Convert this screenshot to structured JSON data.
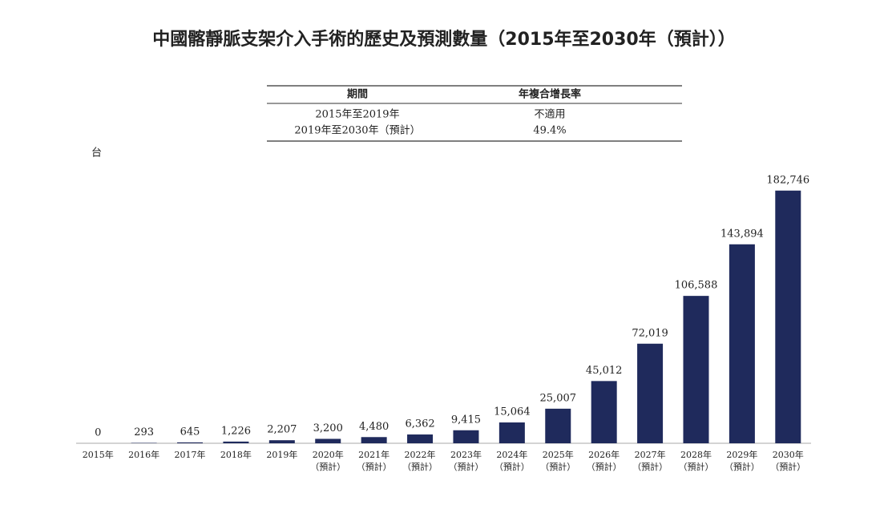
{
  "chart_data": {
    "type": "bar",
    "title": "中國髂靜脈支架介入手術的歷史及預測數量（2015年至2030年（預計））",
    "table": {
      "header": [
        "期間",
        "年複合增長率"
      ],
      "rows": [
        [
          "2015年至2019年",
          "不適用"
        ],
        [
          "2019年至2030年（預計）",
          "49.4%"
        ]
      ]
    },
    "y_unit": "台",
    "categories": [
      "2015年",
      "2016年",
      "2017年",
      "2018年",
      "2019年",
      "2020年",
      "2021年",
      "2022年",
      "2023年",
      "2024年",
      "2025年",
      "2026年",
      "2027年",
      "2028年",
      "2029年",
      "2030年"
    ],
    "category_sublabels": [
      null,
      null,
      null,
      null,
      null,
      "（預計）",
      "（預計）",
      "（預計）",
      "（預計）",
      "（預計）",
      "（預計）",
      "（預計）",
      "（預計）",
      "（預計）",
      "（預計）",
      "（預計）"
    ],
    "values": [
      0,
      293,
      645,
      1226,
      2207,
      3200,
      4480,
      6362,
      9415,
      15064,
      25007,
      45012,
      72019,
      106588,
      143894,
      182746
    ],
    "value_labels": [
      "0",
      "293",
      "645",
      "1,226",
      "2,207",
      "3,200",
      "4,480",
      "6,362",
      "9,415",
      "15,064",
      "25,007",
      "45,012",
      "72,019",
      "106,588",
      "143,894",
      "182,746"
    ],
    "color": "#1f2a5c",
    "ylim": [
      0,
      200000
    ]
  }
}
